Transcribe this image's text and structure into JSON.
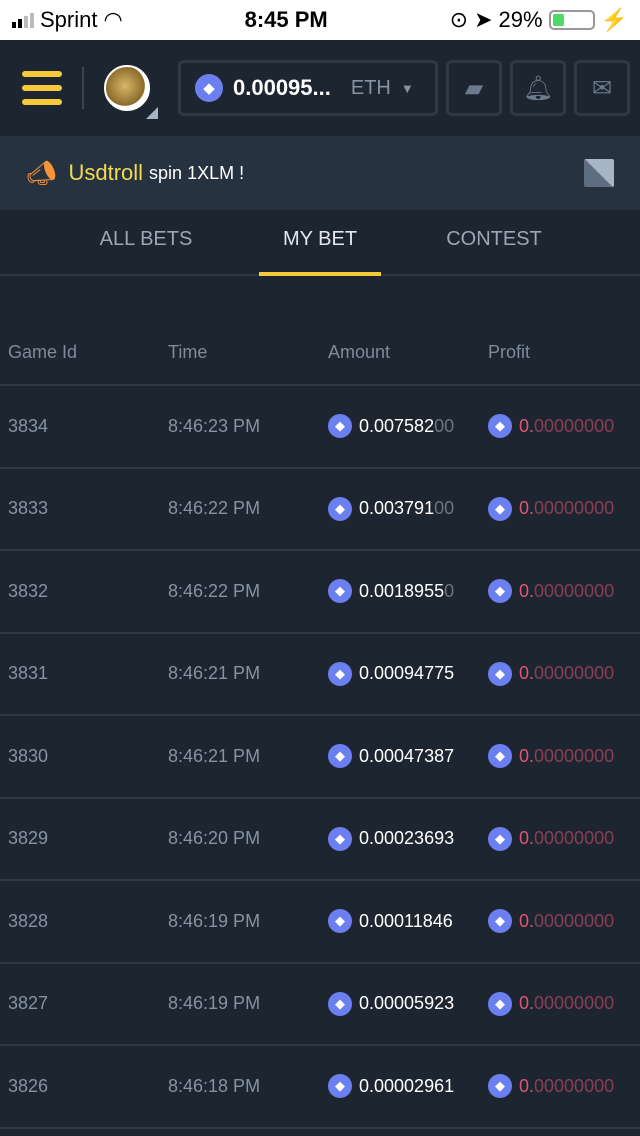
{
  "status_bar": {
    "carrier": "Sprint",
    "time": "8:45 PM",
    "battery": "29%",
    "battery_level": 0.29
  },
  "header": {
    "balance": "0.00095...",
    "currency": "ETH"
  },
  "announcement": {
    "user": "Usdtroll",
    "message": "spin 1XLM !"
  },
  "tabs": [
    {
      "label": "ALL BETS"
    },
    {
      "label": "MY BET",
      "active": true
    },
    {
      "label": "CONTEST"
    }
  ],
  "table": {
    "columns": [
      "Game Id",
      "Time",
      "Amount",
      "Profit"
    ],
    "rows": [
      {
        "id": "3834",
        "time": "8:46:23 PM",
        "amount": "0.007582",
        "amount_tail": "00",
        "profit": "0.",
        "profit_tail": "00000000"
      },
      {
        "id": "3833",
        "time": "8:46:22 PM",
        "amount": "0.003791",
        "amount_tail": "00",
        "profit": "0.",
        "profit_tail": "00000000"
      },
      {
        "id": "3832",
        "time": "8:46:22 PM",
        "amount": "0.0018955",
        "amount_tail": "0",
        "profit": "0.",
        "profit_tail": "00000000"
      },
      {
        "id": "3831",
        "time": "8:46:21 PM",
        "amount": "0.00094775",
        "amount_tail": "",
        "profit": "0.",
        "profit_tail": "00000000"
      },
      {
        "id": "3830",
        "time": "8:46:21 PM",
        "amount": "0.00047387",
        "amount_tail": "",
        "profit": "0.",
        "profit_tail": "00000000"
      },
      {
        "id": "3829",
        "time": "8:46:20 PM",
        "amount": "0.00023693",
        "amount_tail": "",
        "profit": "0.",
        "profit_tail": "00000000"
      },
      {
        "id": "3828",
        "time": "8:46:19 PM",
        "amount": "0.00011846",
        "amount_tail": "",
        "profit": "0.",
        "profit_tail": "00000000"
      },
      {
        "id": "3827",
        "time": "8:46:19 PM",
        "amount": "0.00005923",
        "amount_tail": "",
        "profit": "0.",
        "profit_tail": "00000000"
      },
      {
        "id": "3826",
        "time": "8:46:18 PM",
        "amount": "0.00002961",
        "amount_tail": "",
        "profit": "0.",
        "profit_tail": "00000000"
      }
    ]
  }
}
